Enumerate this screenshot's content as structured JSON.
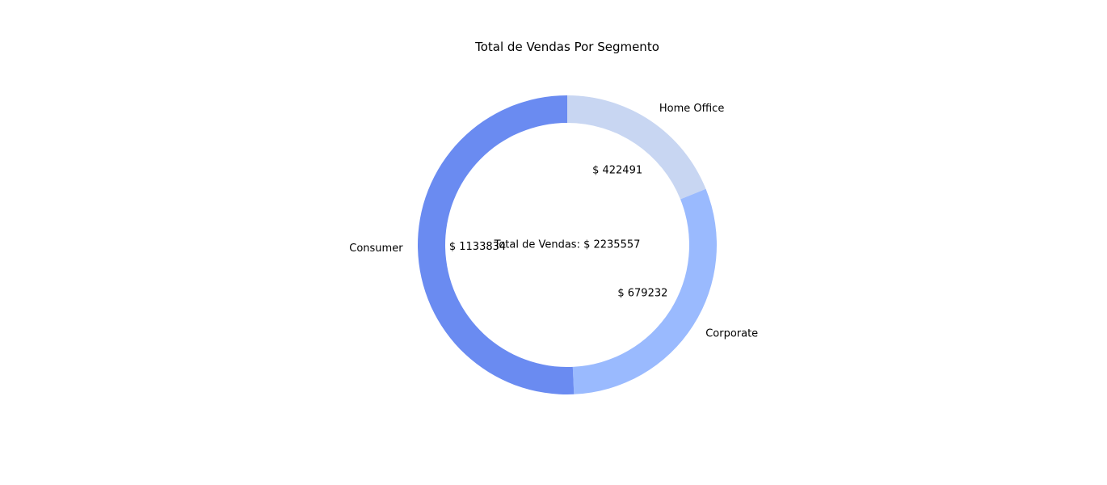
{
  "chart_data": {
    "type": "pie",
    "variant": "donut",
    "title": "Total de Vendas Por Segmento",
    "categories": [
      "Home Office",
      "Corporate",
      "Consumer"
    ],
    "values": [
      422491,
      679232,
      1133834
    ],
    "value_labels": [
      "$ 422491",
      "$ 679232",
      "$ 1133834"
    ],
    "colors": [
      "#c8d6f2",
      "#9abafe",
      "#6a8bf1"
    ],
    "center_label": "Total de Vendas: $ 2235557",
    "start_angle_deg": 90,
    "direction": "clockwise",
    "legend": "none"
  }
}
